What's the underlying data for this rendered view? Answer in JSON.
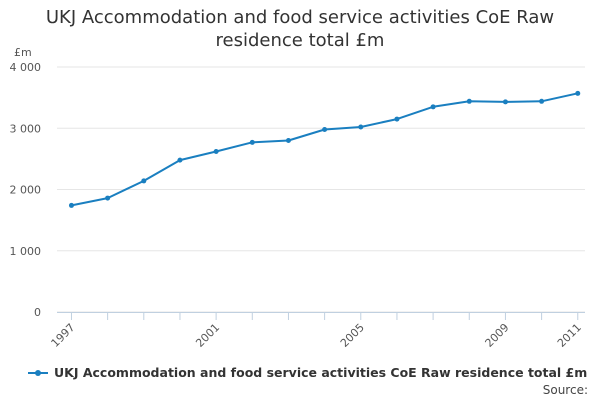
{
  "chart_data": {
    "type": "line",
    "title_lines": [
      "UKJ Accommodation and food service activities CoE Raw",
      "residence total £m"
    ],
    "y_unit": "£m",
    "x": [
      1997,
      1998,
      1999,
      2000,
      2001,
      2002,
      2003,
      2004,
      2005,
      2006,
      2007,
      2008,
      2009,
      2010,
      2011
    ],
    "x_tick_labels": [
      "1997",
      "2001",
      "2005",
      "2009",
      "2011"
    ],
    "x_tick_values": [
      1997,
      2001,
      2005,
      2009,
      2011
    ],
    "y_tick_values": [
      0,
      1000,
      2000,
      3000,
      4000
    ],
    "y_tick_labels": [
      "0",
      "1 000",
      "2 000",
      "3 000",
      "4 000"
    ],
    "ylim": [
      0,
      4000
    ],
    "xlim": [
      1996.6,
      2011.2
    ],
    "series": [
      {
        "name": "UKJ Accommodation and food service activities CoE Raw residence total £m",
        "color": "#1a7fc0",
        "values": [
          1740,
          1860,
          2140,
          2480,
          2620,
          2770,
          2800,
          2980,
          3020,
          3150,
          3350,
          3440,
          3430,
          3440,
          3570
        ]
      }
    ],
    "grid": true,
    "legend_position": "bottom"
  },
  "footer": {
    "source_label": "Source:"
  }
}
